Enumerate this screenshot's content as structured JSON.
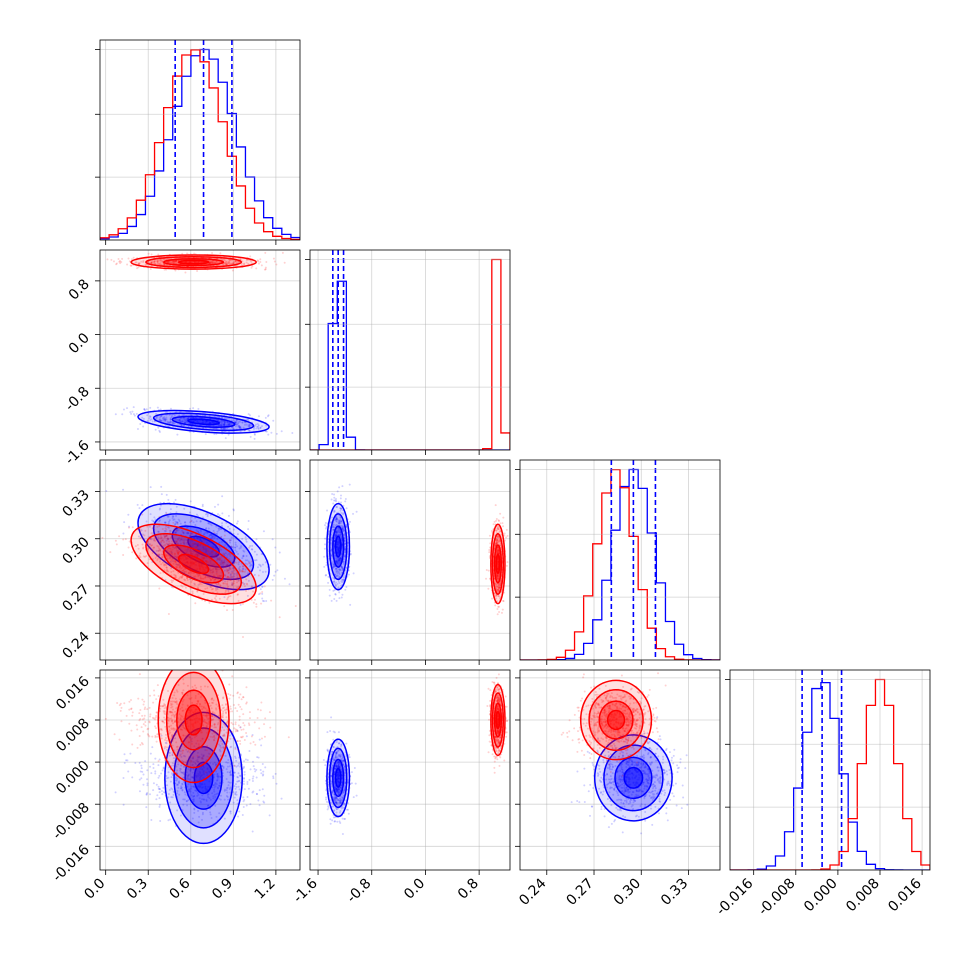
{
  "chart_data": {
    "type": "corner",
    "parameters": 4,
    "colors": {
      "series_a": "#0000ff",
      "series_b": "#ff0000",
      "grid": "#b0b0b0"
    },
    "grid": true,
    "axes": {
      "p0": {
        "range": [
          -0.04,
          1.37
        ],
        "ticks": [
          "0.0",
          "0.3",
          "0.6",
          "0.9",
          "1.2"
        ],
        "tick_values": [
          0.0,
          0.3,
          0.6,
          0.9,
          1.2
        ]
      },
      "p1": {
        "range": [
          -1.72,
          1.26
        ],
        "ticks": [
          "-1.6",
          "-0.8",
          "0.0",
          "0.8"
        ],
        "tick_values": [
          -1.6,
          -0.8,
          0.0,
          0.8
        ]
      },
      "p2": {
        "range": [
          0.223,
          0.35
        ],
        "ticks": [
          "0.24",
          "0.27",
          "0.30",
          "0.33"
        ],
        "tick_values": [
          0.24,
          0.27,
          0.3,
          0.33
        ]
      },
      "p3": {
        "range": [
          -0.0205,
          0.0175
        ],
        "ticks": [
          "-0.016",
          "-0.008",
          "0.000",
          "0.008",
          "0.016"
        ],
        "tick_values": [
          -0.016,
          -0.008,
          0.0,
          0.008,
          0.016
        ]
      }
    },
    "series": [
      {
        "color": "#0000ff",
        "means": [
          0.69,
          -1.3,
          0.295,
          -0.003
        ],
        "sds": [
          0.22,
          0.08,
          0.013,
          0.0035
        ],
        "correlations": {
          "p0_p1": -0.45,
          "p0_p2": -0.55,
          "p0_p3": 0.0,
          "p1_p2": 0.0,
          "p1_p3": 0.0,
          "p2_p3": 0.0
        },
        "quantile_lines": {
          "p0": [
            0.49,
            0.69,
            0.89
          ],
          "p1": [
            -1.38,
            -1.3,
            -1.22
          ],
          "p2": [
            0.281,
            0.295,
            0.309
          ],
          "p3": [
            -0.0068,
            -0.003,
            0.0007
          ]
        }
      },
      {
        "color": "#ff0000",
        "means": [
          0.62,
          1.08,
          0.284,
          0.008
        ],
        "sds": [
          0.21,
          0.05,
          0.012,
          0.0032
        ],
        "correlations": {
          "p0_p1": 0.0,
          "p0_p2": -0.6,
          "p0_p3": 0.0,
          "p1_p2": 0.0,
          "p1_p3": 0.0,
          "p2_p3": 0.0
        }
      }
    ]
  }
}
